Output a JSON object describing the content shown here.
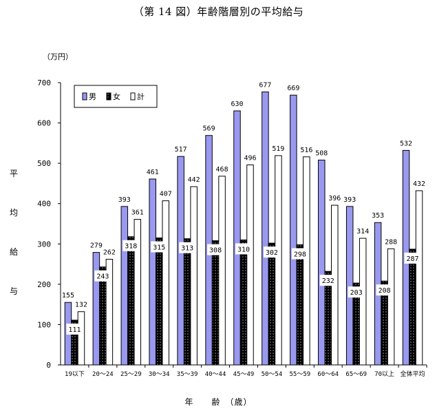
{
  "title": "（第 14 図）年齢階層別の平均給与",
  "unit_label": "（万円）",
  "ylabel_chars": [
    "平",
    "均",
    "給",
    "与"
  ],
  "xlabel": "年　　齢　（歳）",
  "colors": {
    "male": "#9999f0",
    "female": "#000000",
    "total": "#ffffff"
  },
  "chart_data": {
    "type": "bar",
    "title": "（第 14 図）年齢階層別の平均給与",
    "xlabel": "年　　齢　（歳）",
    "ylabel": "平均給与",
    "unit": "（万円）",
    "ylim": [
      0,
      700
    ],
    "yticks": [
      0,
      100,
      200,
      300,
      400,
      500,
      600,
      700
    ],
    "grid": false,
    "legend_position": "top-left",
    "categories": [
      "19以下",
      "20～24",
      "25～29",
      "30～34",
      "35～39",
      "40～44",
      "45～49",
      "50～54",
      "55～59",
      "60～64",
      "65～69",
      "70以上",
      "全体平均"
    ],
    "series": [
      {
        "name": "男",
        "values": [
          155,
          279,
          393,
          461,
          517,
          569,
          630,
          677,
          669,
          508,
          393,
          353,
          532
        ]
      },
      {
        "name": "女",
        "values": [
          111,
          243,
          318,
          315,
          313,
          308,
          310,
          302,
          298,
          232,
          203,
          208,
          287
        ]
      },
      {
        "name": "計",
        "values": [
          132,
          262,
          361,
          407,
          442,
          468,
          496,
          519,
          516,
          396,
          314,
          288,
          432
        ]
      }
    ]
  }
}
